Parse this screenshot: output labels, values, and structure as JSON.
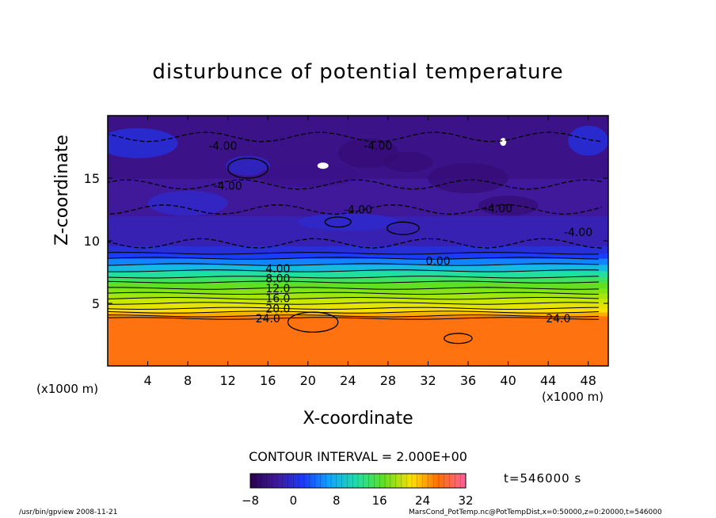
{
  "title": "disturbunce of potential temperature",
  "footer": {
    "left": "/usr/bin/gpview   2008-11-21",
    "right": "MarsCond_PotTemp.nc@PotTempDist,x=0:50000,z=0:20000,t=546000"
  },
  "time_label": "t=546000 s",
  "contour_interval": "CONTOUR INTERVAL = 2.000E+00",
  "chart_data": {
    "type": "heatmap",
    "title": "disturbunce of potential temperature",
    "xlabel": "X-coordinate",
    "ylabel": "Z-coordinate",
    "x_unit_left": "(x1000 m)",
    "x_unit_right": "(x1000 m)",
    "xlim": [
      0,
      50
    ],
    "ylim": [
      0,
      20
    ],
    "x_ticks": [
      4,
      8,
      12,
      16,
      20,
      24,
      28,
      32,
      36,
      40,
      44,
      48
    ],
    "y_ticks": [
      5,
      10,
      15
    ],
    "colorbar": {
      "min": -8,
      "max": 32,
      "ticks": [
        -8,
        0,
        8,
        16,
        24,
        32
      ]
    },
    "layers": [
      {
        "z_top": 3.8,
        "value": 25
      },
      {
        "z_top": 4.0,
        "value": 24
      },
      {
        "z_top": 4.3,
        "value": 22
      },
      {
        "z_top": 4.6,
        "value": 20
      },
      {
        "z_top": 5.0,
        "value": 18
      },
      {
        "z_top": 5.4,
        "value": 16
      },
      {
        "z_top": 5.8,
        "value": 14
      },
      {
        "z_top": 6.2,
        "value": 12
      },
      {
        "z_top": 6.7,
        "value": 10
      },
      {
        "z_top": 7.1,
        "value": 8
      },
      {
        "z_top": 7.6,
        "value": 6
      },
      {
        "z_top": 8.1,
        "value": 4
      },
      {
        "z_top": 8.6,
        "value": 2
      },
      {
        "z_top": 9.0,
        "value": 0
      },
      {
        "z_top": 9.6,
        "value": -1.5
      },
      {
        "z_top": 12.0,
        "value": -3
      },
      {
        "z_top": 15.0,
        "value": -4
      },
      {
        "z_top": 20.0,
        "value": -5
      }
    ],
    "contour_labels": [
      {
        "text": "4.00",
        "x": 17.0,
        "z": 7.8
      },
      {
        "text": "8.00",
        "x": 17.0,
        "z": 7.0
      },
      {
        "text": "12.0",
        "x": 17.0,
        "z": 6.2
      },
      {
        "text": "16.0",
        "x": 17.0,
        "z": 5.4
      },
      {
        "text": "20.0",
        "x": 17.0,
        "z": 4.6
      },
      {
        "text": "24.0",
        "x": 16.0,
        "z": 3.8
      },
      {
        "text": "24.0",
        "x": 45.0,
        "z": 3.8
      },
      {
        "text": "0.00",
        "x": 33.0,
        "z": 8.4
      },
      {
        "text": "-4.00",
        "x": 11.5,
        "z": 17.6
      },
      {
        "text": "-4.00",
        "x": 27.0,
        "z": 17.6
      },
      {
        "text": "-4.00",
        "x": 12.0,
        "z": 14.4
      },
      {
        "text": "-4.00",
        "x": 25.0,
        "z": 12.5
      },
      {
        "text": "-4.00",
        "x": 39.0,
        "z": 12.6
      },
      {
        "text": "-4.00",
        "x": 47.0,
        "z": 10.7
      }
    ]
  }
}
